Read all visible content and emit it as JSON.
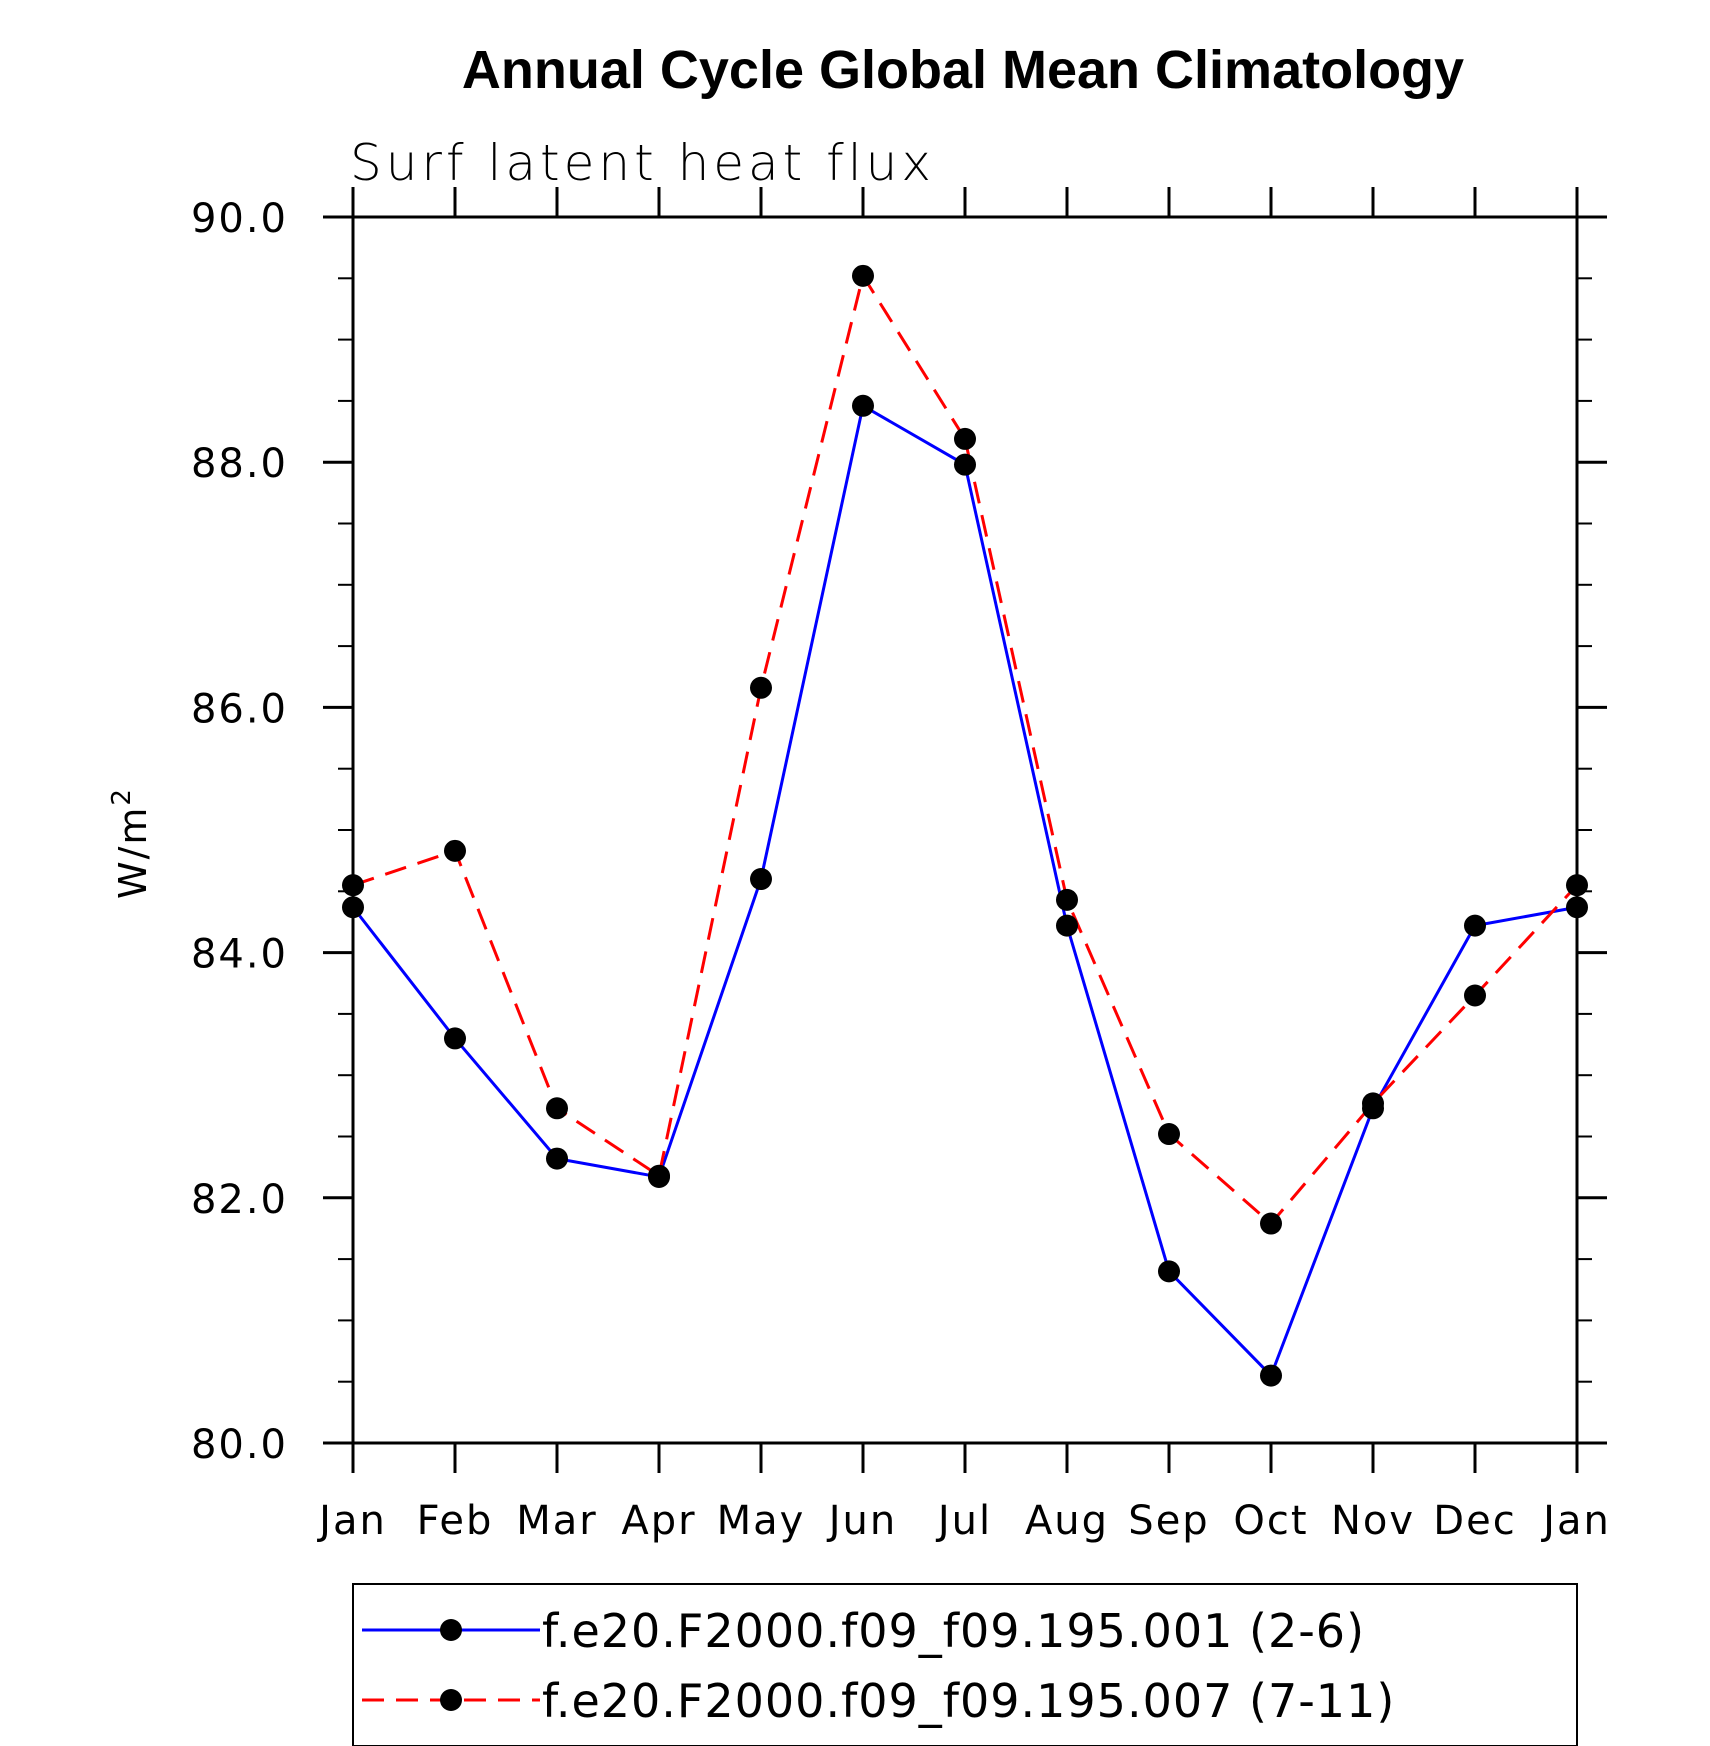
{
  "chart_data": {
    "type": "line",
    "title": "Annual Cycle Global Mean Climatology",
    "subtitle": "Surf latent heat flux",
    "ylabel": "W/m",
    "ylabel_sup": "2",
    "xlabel": "",
    "categories": [
      "Jan",
      "Feb",
      "Mar",
      "Apr",
      "May",
      "Jun",
      "Jul",
      "Aug",
      "Sep",
      "Oct",
      "Nov",
      "Dec",
      "Jan"
    ],
    "ylim": [
      80.0,
      90.0
    ],
    "yticks": [
      "80.0",
      "82.0",
      "84.0",
      "86.0",
      "88.0",
      "90.0"
    ],
    "series": [
      {
        "name": "f.e20.F2000.f09_f09.195.001 (2-6)",
        "color": "#0000ff",
        "dash": "solid",
        "values": [
          84.37,
          83.3,
          82.32,
          82.17,
          84.6,
          88.46,
          87.98,
          84.22,
          81.4,
          80.55,
          82.73,
          84.22,
          84.37
        ]
      },
      {
        "name": "f.e20.F2000.f09_f09.195.007 (7-11)",
        "color": "#ff0000",
        "dash": "dashed",
        "values": [
          84.55,
          84.83,
          82.73,
          82.18,
          86.16,
          89.52,
          88.19,
          84.43,
          82.52,
          81.79,
          82.77,
          83.65,
          84.55
        ]
      }
    ],
    "legend_position": "bottom",
    "grid": false
  }
}
